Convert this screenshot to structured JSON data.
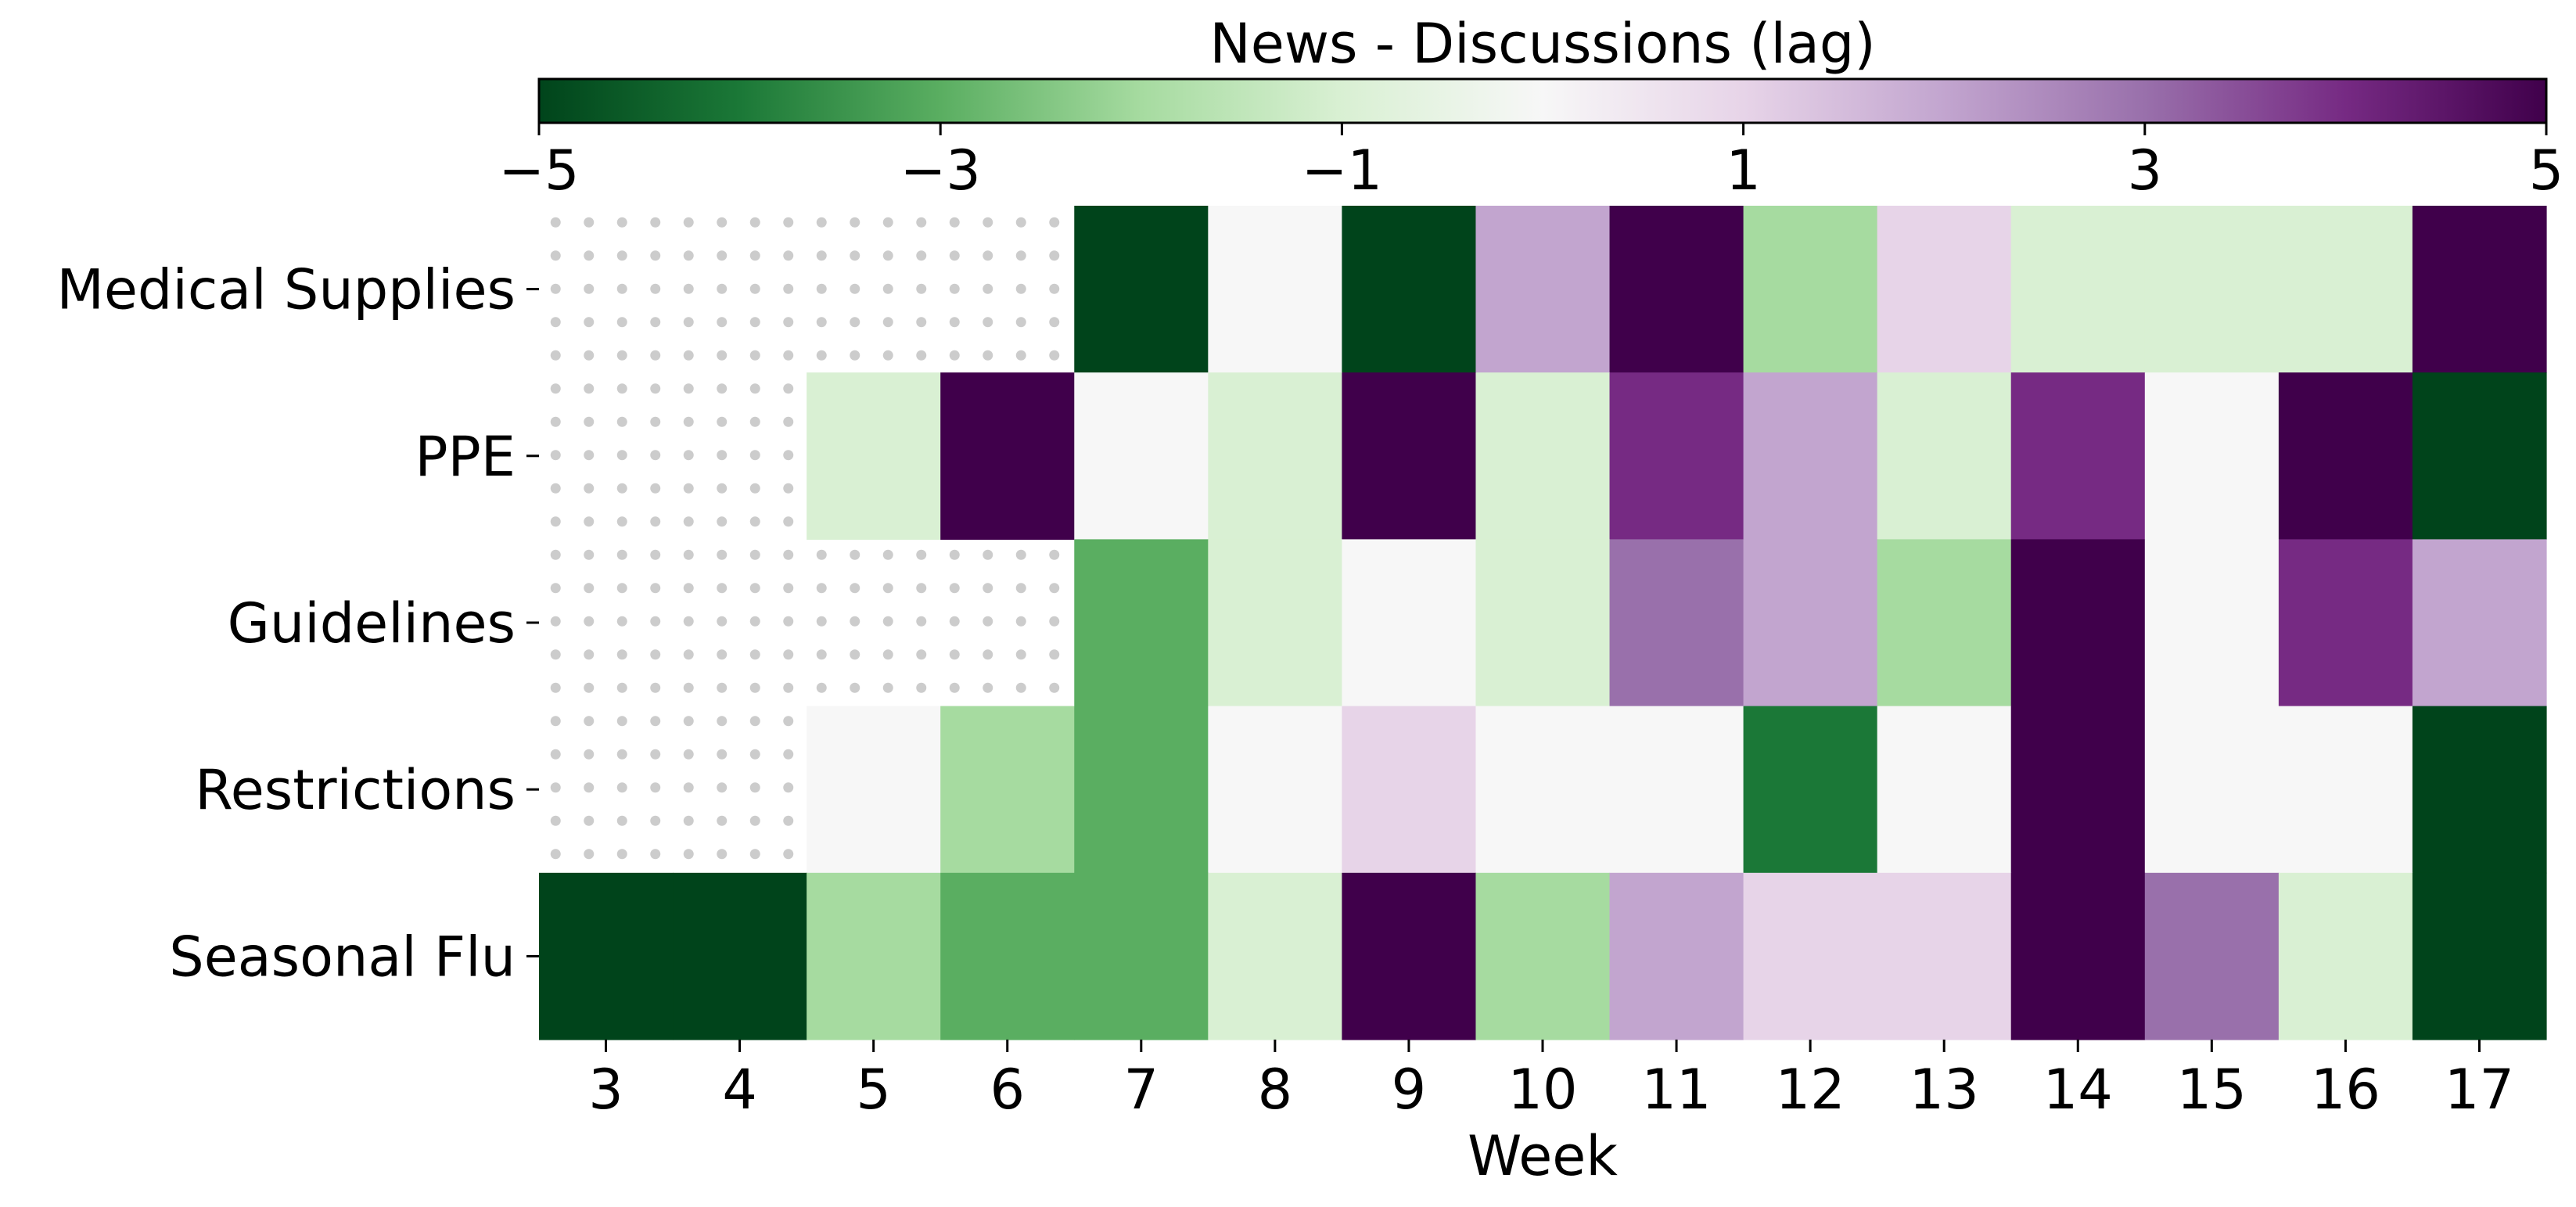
{
  "chart_data": {
    "type": "heatmap",
    "title": "",
    "colorbar": {
      "label": "News - Discussions (lag)",
      "range": [
        -5,
        5
      ],
      "ticks": [
        -5,
        -3,
        -1,
        1,
        3,
        5
      ],
      "tick_labels": [
        "−5",
        "−3",
        "−1",
        "1",
        "3",
        "5"
      ],
      "position": "top",
      "colormap": "PRGn (green negative, purple positive)"
    },
    "xlabel": "Week",
    "ylabel": "",
    "x_categories": [
      "3",
      "4",
      "5",
      "6",
      "7",
      "8",
      "9",
      "10",
      "11",
      "12",
      "13",
      "14",
      "15",
      "16",
      "17"
    ],
    "y_categories": [
      "Medical Supplies",
      "PPE",
      "Guidelines",
      "Restrictions",
      "Seasonal Flu"
    ],
    "missing_style": "dotted hatch",
    "values": [
      [
        null,
        null,
        null,
        null,
        -5,
        0,
        -5,
        2,
        5,
        -2,
        1,
        -1,
        -1,
        -1,
        5
      ],
      [
        null,
        null,
        -1,
        5,
        0,
        -1,
        5,
        -1,
        4,
        2,
        -1,
        4,
        0,
        5,
        -5
      ],
      [
        null,
        null,
        null,
        null,
        -3,
        -1,
        0,
        -1,
        3,
        2,
        -2,
        5,
        0,
        4,
        2
      ],
      [
        null,
        null,
        0,
        -2,
        -3,
        0,
        1,
        0,
        0,
        -4,
        0,
        5,
        0,
        0,
        -5
      ],
      [
        -5,
        -5,
        -2,
        -3,
        -3,
        -1,
        5,
        -2,
        2,
        1,
        1,
        5,
        3,
        -1,
        -5
      ]
    ]
  }
}
